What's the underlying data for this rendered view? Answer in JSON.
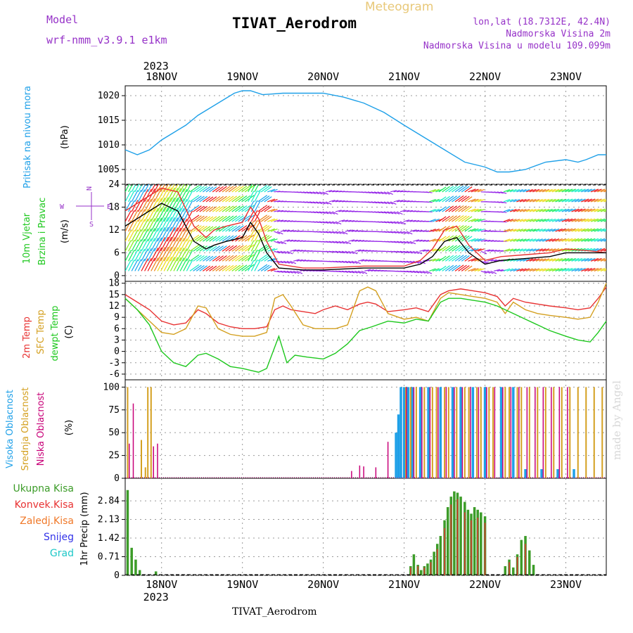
{
  "header": {
    "model_label": "Model",
    "model_value": "wrf-nmm_v3.9.1 e1km",
    "title": "TIVAT_Aerodrom",
    "subtitle": "Meteogram",
    "location": "lon,lat (18.7312E, 42.4N)",
    "elevation": "Nadmorska Visina 2m",
    "model_elevation": "Nadmorska Visina u modelu 109.099m",
    "footer": "TIVAT_Aerodrom",
    "watermark": "made by Angel"
  },
  "colors": {
    "pressure": "#1ea0e8",
    "t2m": "#e83232",
    "sfc": "#d4a020",
    "dewpt": "#1ec81e",
    "high_cloud": "#1ea0e8",
    "mid_cloud": "#d4a020",
    "low_cloud": "#c80078",
    "precip_total": "#3c9c28",
    "precip_conv": "#e83232",
    "precip_frozen": "#f07828",
    "snow": "#3232e8",
    "hail": "#1ec8c8",
    "wind_calm": "#9628e8",
    "wind_speed_line": "#000000",
    "wind_gust": "#e83232",
    "purple_text": "#9632c8",
    "gold_text": "#e8c878"
  },
  "chart_data": [
    {
      "type": "line",
      "panel": "pressure",
      "ylabel": [
        "Pritisak na nivou mora",
        "(hPa)"
      ],
      "ylim": [
        1002,
        1022
      ],
      "yticks": [
        1005,
        1010,
        1015,
        1020
      ],
      "x_dates": [
        "18NOV",
        "19NOV",
        "20NOV",
        "21NOV",
        "22NOV",
        "23NOV"
      ],
      "x_top_year": "2023",
      "x_bottom_year": "2023",
      "series": [
        {
          "x": [
            17.55,
            17.7,
            17.85,
            18.0,
            18.15,
            18.3,
            18.45,
            18.6,
            18.75,
            18.9,
            19.0,
            19.1,
            19.25,
            19.5,
            19.75,
            20.0,
            20.25,
            20.5,
            20.75,
            21.0,
            21.25,
            21.5,
            21.75,
            22.0,
            22.15,
            22.3,
            22.5,
            22.75,
            23.0,
            23.15,
            23.25,
            23.4,
            23.5
          ],
          "values": [
            1009,
            1008,
            1009,
            1011,
            1012.5,
            1014,
            1016,
            1017.5,
            1019,
            1020.5,
            1021,
            1021,
            1020.2,
            1020.5,
            1020.5,
            1020.5,
            1019.7,
            1018.5,
            1016.6,
            1014,
            1011.5,
            1009,
            1006.5,
            1005.5,
            1004.5,
            1004.5,
            1005,
            1006.5,
            1007,
            1006.5,
            1007,
            1008,
            1008
          ]
        }
      ]
    },
    {
      "type": "vector",
      "panel": "wind",
      "ylabel": [
        "10m Vjetar",
        "Brzina i Pravac",
        "(m/s)"
      ],
      "compass": [
        "N",
        "E",
        "S",
        "W"
      ],
      "ylim": [
        -1.5,
        24
      ],
      "yticks": [
        0,
        6,
        12,
        18,
        24
      ],
      "series": [
        {
          "name": "speed",
          "x": [
            17.55,
            17.7,
            17.85,
            18.0,
            18.2,
            18.4,
            18.55,
            18.65,
            18.8,
            19.0,
            19.1,
            19.2,
            19.3,
            19.45,
            19.75,
            20.0,
            20.5,
            20.8,
            21.0,
            21.2,
            21.35,
            21.5,
            21.65,
            21.8,
            22.0,
            22.2,
            22.5,
            22.8,
            23.0,
            23.3,
            23.5
          ],
          "values": [
            13,
            15,
            17,
            19,
            17,
            9,
            7,
            8,
            9,
            10,
            14,
            11,
            6,
            2,
            1.5,
            1.5,
            2,
            2,
            2,
            3,
            5,
            9,
            10,
            6,
            3,
            4,
            4.5,
            5,
            6,
            6,
            6
          ]
        },
        {
          "name": "gust",
          "x": [
            17.55,
            17.7,
            17.85,
            18.0,
            18.2,
            18.4,
            18.55,
            18.65,
            18.8,
            19.0,
            19.1,
            19.2,
            19.3,
            19.45,
            19.75,
            20.0,
            20.5,
            20.8,
            21.0,
            21.2,
            21.35,
            21.5,
            21.65,
            21.8,
            22.0,
            22.2,
            22.5,
            22.8,
            23.0,
            23.3,
            23.5
          ],
          "values": [
            17,
            19,
            21,
            23,
            22,
            13,
            10,
            12,
            13,
            14,
            18,
            15,
            9,
            3,
            2,
            2,
            2.5,
            2.5,
            2.5,
            4,
            7,
            12,
            13,
            8,
            4,
            5,
            5.5,
            6,
            7,
            6.5,
            6
          ]
        }
      ]
    },
    {
      "type": "line",
      "panel": "temperature",
      "ylabel": [
        "2m Temp",
        "SFC Temp",
        "dewpt Temp",
        "(C)"
      ],
      "ylim": [
        -7.5,
        18.5
      ],
      "yticks": [
        -6,
        -3,
        0,
        3,
        6,
        9,
        12,
        15,
        18
      ],
      "series": [
        {
          "name": "2m Temp",
          "x": [
            17.55,
            17.7,
            17.85,
            18.0,
            18.15,
            18.3,
            18.45,
            18.55,
            18.7,
            18.85,
            19.0,
            19.15,
            19.3,
            19.4,
            19.5,
            19.6,
            19.75,
            19.9,
            20.0,
            20.15,
            20.3,
            20.45,
            20.55,
            20.65,
            20.8,
            21.0,
            21.15,
            21.3,
            21.45,
            21.55,
            21.7,
            21.85,
            22.0,
            22.15,
            22.25,
            22.35,
            22.5,
            22.65,
            22.8,
            23.0,
            23.15,
            23.3,
            23.4,
            23.5
          ],
          "values": [
            15,
            13,
            11,
            8,
            7,
            7.5,
            11,
            10,
            7.5,
            6.5,
            6,
            6,
            6.5,
            11,
            12,
            11,
            10.5,
            10,
            11,
            12,
            11,
            12.5,
            13,
            12.5,
            10.5,
            11,
            11.5,
            10.5,
            15,
            16,
            16.5,
            16,
            15.5,
            14.5,
            12,
            14,
            13,
            12.5,
            12,
            11.5,
            11,
            11.5,
            14,
            17
          ]
        },
        {
          "name": "SFC Temp",
          "x": [
            17.55,
            17.7,
            17.85,
            18.0,
            18.15,
            18.3,
            18.45,
            18.55,
            18.7,
            18.85,
            19.0,
            19.15,
            19.3,
            19.4,
            19.5,
            19.6,
            19.75,
            19.9,
            20.0,
            20.15,
            20.3,
            20.45,
            20.55,
            20.65,
            20.8,
            21.0,
            21.15,
            21.3,
            21.45,
            21.55,
            21.7,
            21.85,
            22.0,
            22.15,
            22.25,
            22.35,
            22.5,
            22.65,
            22.8,
            23.0,
            23.15,
            23.3,
            23.4,
            23.5
          ],
          "values": [
            14,
            11,
            8,
            5,
            4.5,
            6,
            12,
            11.5,
            6,
            4.5,
            4,
            4,
            5,
            14,
            15,
            12,
            7,
            6,
            6,
            6,
            7,
            16,
            17,
            16,
            10,
            8.5,
            9,
            8,
            14,
            15.5,
            15,
            14.5,
            14,
            13,
            10,
            13,
            11,
            10,
            9.5,
            9,
            8.5,
            9,
            13,
            18
          ]
        },
        {
          "name": "dewpt Temp",
          "x": [
            17.55,
            17.7,
            17.85,
            18.0,
            18.15,
            18.3,
            18.45,
            18.55,
            18.7,
            18.85,
            19.0,
            19.1,
            19.2,
            19.3,
            19.45,
            19.55,
            19.65,
            19.8,
            20.0,
            20.15,
            20.3,
            20.45,
            20.6,
            20.8,
            21.0,
            21.15,
            21.3,
            21.45,
            21.55,
            21.7,
            21.85,
            22.0,
            22.15,
            22.35,
            22.5,
            22.65,
            22.8,
            23.0,
            23.15,
            23.3,
            23.4,
            23.5
          ],
          "values": [
            14,
            11,
            7,
            0,
            -3,
            -4,
            -1,
            -0.5,
            -2,
            -4,
            -4.5,
            -5,
            -5.5,
            -4.5,
            4,
            -3,
            -1,
            -1.5,
            -2,
            -0.5,
            2,
            5.5,
            6.5,
            8,
            7.5,
            8.5,
            8,
            13,
            14,
            14,
            13.5,
            13,
            12,
            10,
            8.5,
            7,
            5.5,
            4,
            3,
            2.5,
            5,
            8
          ]
        }
      ]
    },
    {
      "type": "bar",
      "panel": "cloud",
      "ylabel": [
        "Visoka Oblacnost",
        "Srednja Oblacnost",
        "Niska Oblacnost",
        "(%)"
      ],
      "ylim": [
        0,
        108
      ],
      "yticks": [
        0,
        25,
        50,
        75,
        100
      ],
      "series": [
        {
          "name": "Visoka Oblacnost",
          "x": [
            20.9,
            20.93,
            20.96,
            21.0,
            21.05,
            21.1,
            21.2,
            21.3,
            21.45,
            21.6,
            21.7,
            21.85,
            22.0,
            22.2,
            22.35,
            22.5,
            22.7,
            22.9,
            23.1
          ],
          "values": [
            50,
            70,
            100,
            100,
            100,
            100,
            100,
            100,
            100,
            100,
            100,
            100,
            100,
            100,
            100,
            10,
            10,
            10,
            10
          ]
        },
        {
          "name": "Srednja Oblacnost",
          "x": [
            17.58,
            17.75,
            17.8,
            17.83,
            17.87,
            18.0,
            21.02,
            21.08,
            21.15,
            21.25,
            21.35,
            21.4,
            21.5,
            21.55,
            21.65,
            21.75,
            21.8,
            21.9,
            21.95,
            22.05,
            22.1,
            22.25,
            22.3,
            22.4,
            22.45,
            22.55,
            22.65,
            22.75,
            22.85,
            22.95,
            23.05,
            23.15,
            23.25,
            23.35,
            23.45
          ],
          "values": [
            100,
            42,
            12,
            100,
            100,
            0,
            100,
            100,
            100,
            100,
            100,
            100,
            100,
            100,
            100,
            100,
            100,
            100,
            100,
            100,
            100,
            100,
            100,
            100,
            100,
            100,
            100,
            100,
            100,
            100,
            100,
            100,
            100,
            100,
            100
          ]
        },
        {
          "name": "Niska Oblacnost",
          "x": [
            17.6,
            17.65,
            17.9,
            17.95,
            20.35,
            20.45,
            20.5,
            20.65,
            20.8,
            21.03,
            21.12,
            21.22,
            21.32,
            21.42,
            21.52,
            21.62,
            21.72,
            21.82,
            21.92,
            22.02,
            22.12,
            22.22,
            22.32,
            22.42,
            22.52,
            22.62,
            22.72,
            22.82,
            22.92,
            23.02
          ],
          "values": [
            38,
            82,
            35,
            38,
            8,
            14,
            13,
            12,
            40,
            100,
            100,
            100,
            100,
            100,
            100,
            100,
            100,
            100,
            100,
            100,
            100,
            100,
            100,
            100,
            100,
            100,
            100,
            100,
            100,
            100
          ]
        }
      ]
    },
    {
      "type": "bar",
      "panel": "precip",
      "ylabel": [
        "1hr Precip (mm)"
      ],
      "legend": [
        "Ukupna Kisa",
        "Konvek.Kisa",
        "Zaledj.Kisa",
        "Snijeg",
        "Grad"
      ],
      "ylim": [
        0,
        3.7
      ],
      "yticks": [
        0,
        0.71,
        1.42,
        2.13,
        2.84
      ],
      "series": [
        {
          "name": "Ukupna Kisa",
          "x": [
            17.58,
            17.63,
            17.68,
            17.73,
            17.93,
            21.08,
            21.12,
            21.17,
            21.21,
            21.25,
            21.29,
            21.33,
            21.37,
            21.41,
            21.45,
            21.5,
            21.54,
            21.58,
            21.62,
            21.66,
            21.7,
            21.75,
            21.79,
            21.83,
            21.87,
            21.91,
            21.95,
            22.0,
            22.25,
            22.3,
            22.35,
            22.4,
            22.45,
            22.5,
            22.55,
            22.6
          ],
          "values": [
            3.25,
            1.05,
            0.6,
            0.2,
            0.15,
            0.35,
            0.8,
            0.4,
            0.2,
            0.35,
            0.45,
            0.6,
            0.9,
            1.2,
            1.5,
            2.1,
            2.6,
            3.0,
            3.2,
            3.15,
            3.0,
            2.8,
            2.5,
            2.35,
            2.6,
            2.5,
            2.4,
            2.25,
            0.35,
            0.6,
            0.3,
            0.8,
            1.35,
            1.5,
            0.95,
            0.4
          ]
        },
        {
          "name": "Konvek.Kisa",
          "x": [
            21.08,
            21.17,
            21.25,
            21.33,
            21.41,
            21.5,
            21.58,
            21.66,
            21.75,
            21.83,
            21.91,
            22.0,
            22.3,
            22.4,
            22.5
          ],
          "values": [
            0.3,
            0.35,
            0.3,
            0.5,
            1.0,
            1.8,
            2.7,
            2.9,
            2.4,
            2.1,
            2.2,
            2.0,
            0.5,
            0.7,
            1.2
          ]
        }
      ]
    }
  ]
}
